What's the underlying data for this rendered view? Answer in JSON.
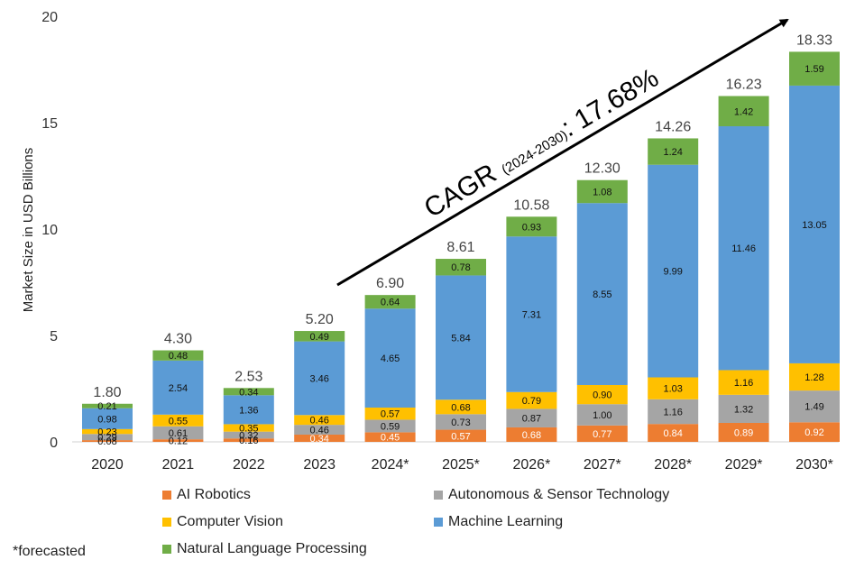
{
  "chart_data": {
    "type": "bar",
    "stacked": true,
    "ylabel": "Market Size in USD Billions",
    "ylim": [
      0,
      20
    ],
    "yticks": [
      0,
      5,
      10,
      15,
      20
    ],
    "categories": [
      "2020",
      "2021",
      "2022",
      "2023",
      "2024*",
      "2025*",
      "2026*",
      "2027*",
      "2028*",
      "2029*",
      "2030*"
    ],
    "totals": [
      "1.80",
      "4.30",
      "2.53",
      "5.20",
      "6.90",
      "8.61",
      "10.58",
      "12.30",
      "14.26",
      "16.23",
      "18.33"
    ],
    "series": [
      {
        "name": "AI Robotics",
        "color": "#ED7D31",
        "values": [
          0.08,
          0.12,
          0.16,
          0.34,
          0.45,
          0.57,
          0.68,
          0.77,
          0.84,
          0.89,
          0.92
        ],
        "labels": [
          "0.08",
          "0.12",
          "0.16",
          "0.34",
          "0.45",
          "0.57",
          "0.68",
          "0.77",
          "0.84",
          "0.89",
          "0.92"
        ]
      },
      {
        "name": "Autonomous & Sensor Technology",
        "color": "#A5A5A5",
        "values": [
          0.29,
          0.61,
          0.32,
          0.46,
          0.59,
          0.73,
          0.87,
          1.0,
          1.16,
          1.32,
          1.49
        ],
        "labels": [
          "0.29",
          "0.61",
          "0.32",
          "0.46",
          "0.59",
          "0.73",
          "0.87",
          "1.00",
          "1.16",
          "1.32",
          "1.49"
        ]
      },
      {
        "name": "Computer Vision",
        "color": "#FFC000",
        "values": [
          0.23,
          0.55,
          0.35,
          0.46,
          0.57,
          0.68,
          0.79,
          0.9,
          1.03,
          1.16,
          1.28
        ],
        "labels": [
          "0.23",
          "0.55",
          "0.35",
          "0.46",
          "0.57",
          "0.68",
          "0.79",
          "0.90",
          "1.03",
          "1.16",
          "1.28"
        ]
      },
      {
        "name": "Machine Learning",
        "color": "#5B9BD5",
        "values": [
          0.98,
          2.54,
          1.36,
          3.46,
          4.65,
          5.84,
          7.31,
          8.55,
          9.99,
          11.46,
          13.05
        ],
        "labels": [
          "0.98",
          "2.54",
          "1.36",
          "3.46",
          "4.65",
          "5.84",
          "7.31",
          "8.55",
          "9.99",
          "11.46",
          "13.05"
        ]
      },
      {
        "name": "Natural Language Processing",
        "color": "#70AD47",
        "values": [
          0.21,
          0.48,
          0.34,
          0.49,
          0.64,
          0.78,
          0.93,
          1.08,
          1.24,
          1.42,
          1.59
        ],
        "labels": [
          "0.21",
          "0.48",
          "0.34",
          "0.49",
          "0.64",
          "0.78",
          "0.93",
          "1.08",
          "1.24",
          "1.42",
          "1.59"
        ]
      }
    ],
    "annotation": {
      "main": "CAGR",
      "sub": "(2024-2030)",
      "value": ": 17.68%"
    },
    "footnote": "*forecasted",
    "legend_position": "bottom"
  }
}
